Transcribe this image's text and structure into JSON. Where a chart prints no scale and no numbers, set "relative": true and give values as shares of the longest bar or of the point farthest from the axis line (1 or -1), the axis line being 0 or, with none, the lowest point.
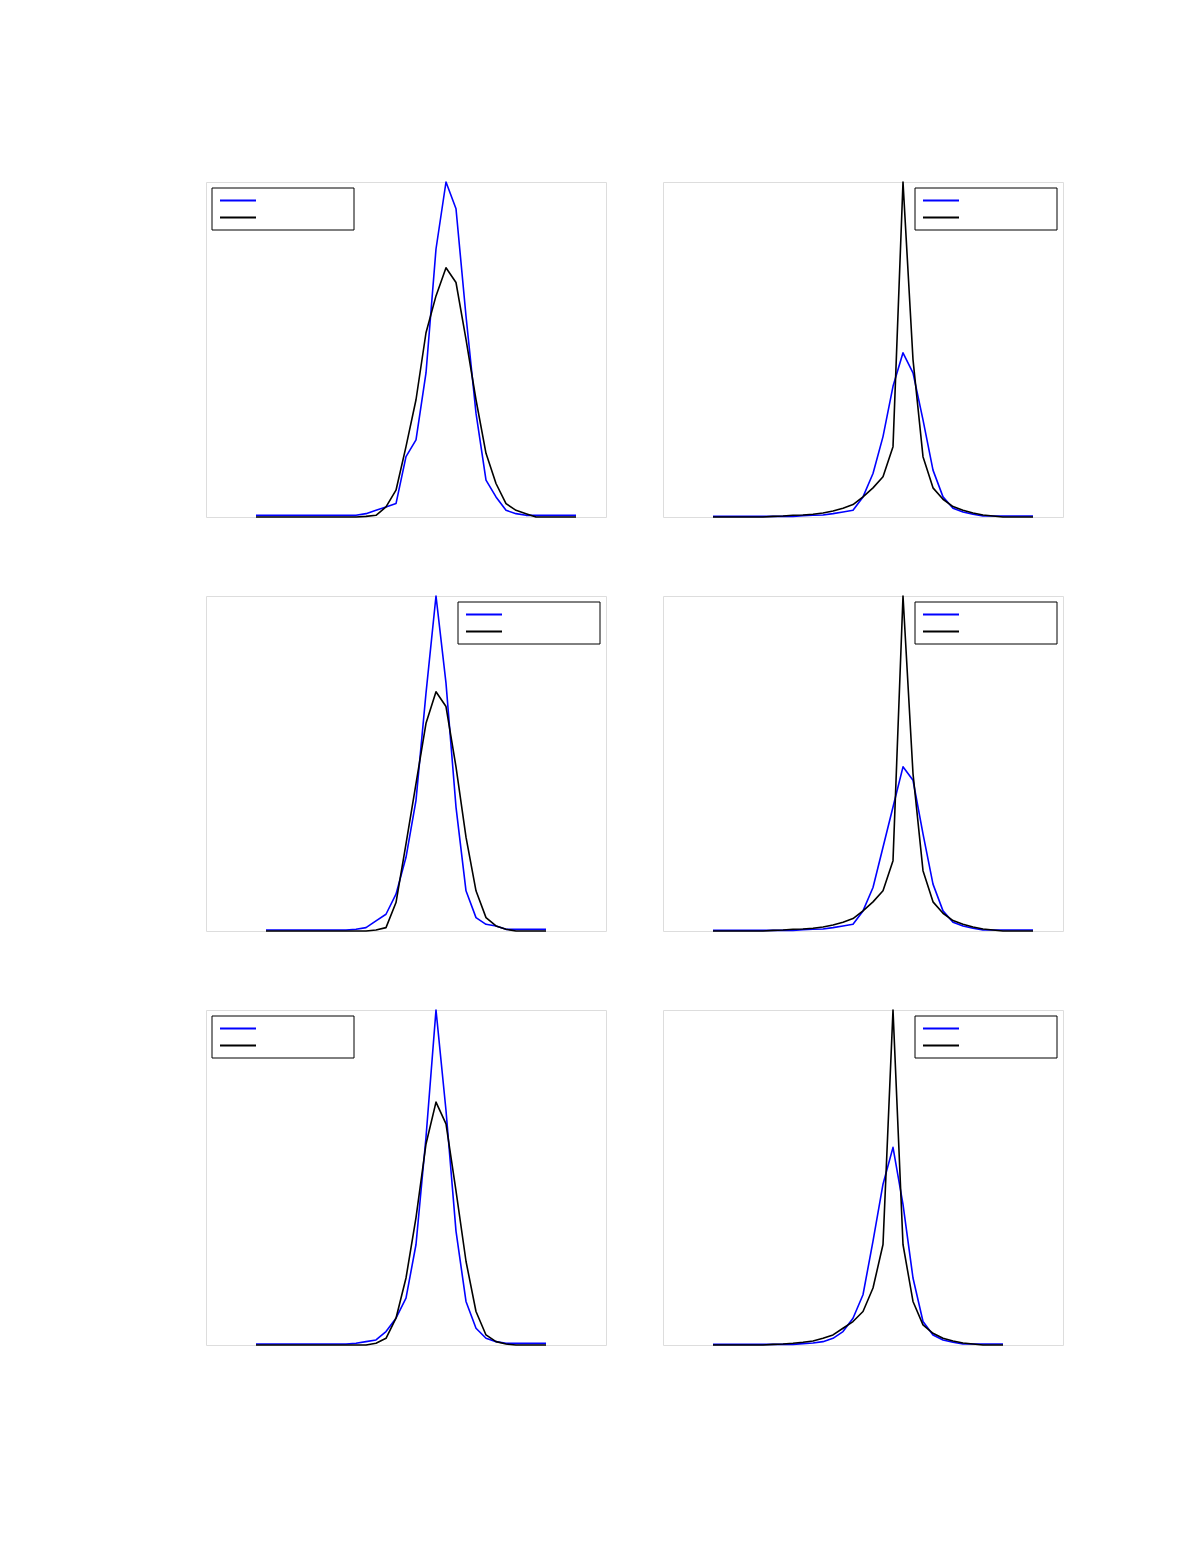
{
  "chart_data": [
    {
      "type": "line",
      "relative": true,
      "categories": [
        null,
        null,
        null,
        null,
        null,
        null,
        null,
        null,
        null,
        null,
        null,
        null,
        null,
        null,
        null,
        null,
        null,
        null,
        null,
        null,
        null,
        null,
        null,
        null,
        null,
        null,
        null,
        null,
        null,
        null,
        null,
        null,
        null,
        null,
        null,
        null,
        null,
        null,
        null,
        null,
        null
      ],
      "series": [
        {
          "color": "#0000ff",
          "values": [
            null,
            null,
            null,
            null,
            null,
            0.005,
            0.005,
            0.005,
            0.005,
            0.005,
            0.005,
            0.005,
            0.005,
            0.005,
            0.005,
            0.005,
            0.01,
            0.02,
            0.03,
            0.04,
            0.18,
            0.23,
            0.43,
            0.8,
            1.0,
            0.92,
            0.6,
            0.31,
            0.11,
            0.06,
            0.02,
            0.01,
            0.005,
            0.005,
            0.005,
            0.005,
            0.005,
            0.005,
            null,
            null,
            null
          ]
        },
        {
          "color": "#000000",
          "values": [
            null,
            null,
            null,
            null,
            null,
            0,
            0,
            0,
            0,
            0,
            0,
            0,
            0,
            0,
            0,
            0,
            0.002,
            0.005,
            0.03,
            0.08,
            0.21,
            0.35,
            0.55,
            0.66,
            0.744,
            0.7,
            0.53,
            0.35,
            0.19,
            0.1,
            0.04,
            0.02,
            0.01,
            0,
            0,
            0,
            0,
            0,
            null,
            null,
            null
          ]
        }
      ]
    },
    {
      "type": "line",
      "relative": true,
      "categories": [
        null,
        null,
        null,
        null,
        null,
        null,
        null,
        null,
        null,
        null,
        null,
        null,
        null,
        null,
        null,
        null,
        null,
        null,
        null,
        null,
        null,
        null,
        null,
        null,
        null,
        null,
        null,
        null,
        null,
        null,
        null,
        null,
        null,
        null,
        null,
        null,
        null,
        null,
        null,
        null,
        null
      ],
      "series": [
        {
          "color": "#0000ff",
          "values": [
            null,
            null,
            null,
            null,
            null,
            0.002,
            0.002,
            0.002,
            0.002,
            0.002,
            0.002,
            0.002,
            0.002,
            0.002,
            0.004,
            0.005,
            0.006,
            0.01,
            0.015,
            0.02,
            0.06,
            0.13,
            0.24,
            0.39,
            0.49,
            0.43,
            0.29,
            0.14,
            0.06,
            0.026,
            0.015,
            0.008,
            0.003,
            0.003,
            0.003,
            0.003,
            0.003,
            0.003,
            null,
            null,
            null
          ]
        },
        {
          "color": "#000000",
          "values": [
            null,
            null,
            null,
            null,
            null,
            0,
            0,
            0,
            0,
            0,
            0,
            0.002,
            0.003,
            0.005,
            0.006,
            0.008,
            0.012,
            0.018,
            0.026,
            0.037,
            0.06,
            0.087,
            0.12,
            0.21,
            1.0,
            0.47,
            0.18,
            0.087,
            0.053,
            0.031,
            0.02,
            0.012,
            0.006,
            0.003,
            0,
            0,
            0,
            0,
            null,
            null,
            null
          ]
        }
      ]
    },
    {
      "type": "line",
      "relative": true,
      "categories": [
        null,
        null,
        null,
        null,
        null,
        null,
        null,
        null,
        null,
        null,
        null,
        null,
        null,
        null,
        null,
        null,
        null,
        null,
        null,
        null,
        null,
        null,
        null,
        null,
        null,
        null,
        null,
        null,
        null,
        null,
        null,
        null,
        null,
        null,
        null,
        null,
        null,
        null,
        null,
        null,
        null
      ],
      "series": [
        {
          "color": "#0000ff",
          "values": [
            null,
            null,
            null,
            null,
            null,
            null,
            0.003,
            0.003,
            0.003,
            0.003,
            0.003,
            0.003,
            0.003,
            0.003,
            0.003,
            0.005,
            0.01,
            0.03,
            0.05,
            0.11,
            0.22,
            0.39,
            0.71,
            1.0,
            0.74,
            0.37,
            0.12,
            0.04,
            0.02,
            0.015,
            0.005,
            0.005,
            0.005,
            0.005,
            0.005,
            null,
            null,
            null,
            null,
            null,
            null
          ]
        },
        {
          "color": "#000000",
          "values": [
            null,
            null,
            null,
            null,
            null,
            null,
            0,
            0,
            0,
            0,
            0,
            0,
            0,
            0,
            0,
            0,
            0,
            0.003,
            0.01,
            0.085,
            0.26,
            0.44,
            0.62,
            0.714,
            0.67,
            0.49,
            0.28,
            0.12,
            0.04,
            0.015,
            0.005,
            0,
            0,
            0,
            0,
            null,
            null,
            null,
            null,
            null,
            null
          ]
        }
      ]
    },
    {
      "type": "line",
      "relative": true,
      "categories": [
        null,
        null,
        null,
        null,
        null,
        null,
        null,
        null,
        null,
        null,
        null,
        null,
        null,
        null,
        null,
        null,
        null,
        null,
        null,
        null,
        null,
        null,
        null,
        null,
        null,
        null,
        null,
        null,
        null,
        null,
        null,
        null,
        null,
        null,
        null,
        null,
        null,
        null,
        null,
        null,
        null
      ],
      "series": [
        {
          "color": "#0000ff",
          "values": [
            null,
            null,
            null,
            null,
            null,
            0.002,
            0.002,
            0.002,
            0.002,
            0.002,
            0.002,
            0.002,
            0.002,
            0.002,
            0.004,
            0.005,
            0.006,
            0.01,
            0.015,
            0.02,
            0.06,
            0.13,
            0.25,
            0.37,
            0.49,
            0.45,
            0.29,
            0.14,
            0.06,
            0.026,
            0.015,
            0.008,
            0.003,
            0.003,
            0.003,
            0.003,
            0.003,
            0.003,
            null,
            null,
            null
          ]
        },
        {
          "color": "#000000",
          "values": [
            null,
            null,
            null,
            null,
            null,
            0,
            0,
            0,
            0,
            0,
            0,
            0.002,
            0.003,
            0.005,
            0.006,
            0.008,
            0.012,
            0.018,
            0.026,
            0.037,
            0.06,
            0.087,
            0.12,
            0.21,
            1.0,
            0.47,
            0.18,
            0.087,
            0.053,
            0.031,
            0.02,
            0.012,
            0.006,
            0.003,
            0,
            0,
            0,
            0,
            null,
            null,
            null
          ]
        }
      ]
    },
    {
      "type": "line",
      "relative": true,
      "categories": [
        null,
        null,
        null,
        null,
        null,
        null,
        null,
        null,
        null,
        null,
        null,
        null,
        null,
        null,
        null,
        null,
        null,
        null,
        null,
        null,
        null,
        null,
        null,
        null,
        null,
        null,
        null,
        null,
        null,
        null,
        null,
        null,
        null,
        null,
        null,
        null,
        null,
        null,
        null,
        null,
        null
      ],
      "series": [
        {
          "color": "#0000ff",
          "values": [
            null,
            null,
            null,
            null,
            null,
            0.003,
            0.003,
            0.003,
            0.003,
            0.003,
            0.003,
            0.003,
            0.003,
            0.003,
            0.003,
            0.005,
            0.01,
            0.015,
            0.04,
            0.08,
            0.14,
            0.3,
            0.62,
            1.0,
            0.7,
            0.34,
            0.13,
            0.05,
            0.02,
            0.01,
            0.005,
            0.005,
            0.005,
            0.005,
            0.005,
            null,
            null,
            null,
            null,
            null,
            null
          ]
        },
        {
          "color": "#000000",
          "values": [
            null,
            null,
            null,
            null,
            null,
            0,
            0,
            0,
            0,
            0,
            0,
            0,
            0,
            0,
            0,
            0,
            0,
            0.005,
            0.02,
            0.08,
            0.2,
            0.38,
            0.6,
            0.725,
            0.66,
            0.46,
            0.25,
            0.1,
            0.03,
            0.01,
            0.003,
            0,
            0,
            0,
            0,
            null,
            null,
            null,
            null,
            null,
            null
          ]
        }
      ]
    },
    {
      "type": "line",
      "relative": true,
      "categories": [
        null,
        null,
        null,
        null,
        null,
        null,
        null,
        null,
        null,
        null,
        null,
        null,
        null,
        null,
        null,
        null,
        null,
        null,
        null,
        null,
        null,
        null,
        null,
        null,
        null,
        null,
        null,
        null,
        null,
        null,
        null,
        null,
        null,
        null,
        null,
        null,
        null,
        null,
        null,
        null,
        null
      ],
      "series": [
        {
          "color": "#0000ff",
          "values": [
            null,
            null,
            null,
            null,
            null,
            0.002,
            0.002,
            0.002,
            0.002,
            0.002,
            0.002,
            0.002,
            0.002,
            0.002,
            0.004,
            0.006,
            0.01,
            0.02,
            0.04,
            0.08,
            0.15,
            0.31,
            0.48,
            0.59,
            0.42,
            0.2,
            0.07,
            0.03,
            0.015,
            0.008,
            0.003,
            0.003,
            0.003,
            0.003,
            0.003,
            null,
            null,
            null,
            null,
            null,
            null
          ]
        },
        {
          "color": "#000000",
          "values": [
            null,
            null,
            null,
            null,
            null,
            0,
            0,
            0,
            0,
            0,
            0,
            0.002,
            0.003,
            0.005,
            0.008,
            0.012,
            0.02,
            0.03,
            0.05,
            0.07,
            0.1,
            0.17,
            0.3,
            1.0,
            0.3,
            0.13,
            0.06,
            0.035,
            0.02,
            0.012,
            0.006,
            0.003,
            0,
            0,
            0,
            null,
            null,
            null,
            null,
            null,
            null
          ]
        }
      ]
    }
  ]
}
